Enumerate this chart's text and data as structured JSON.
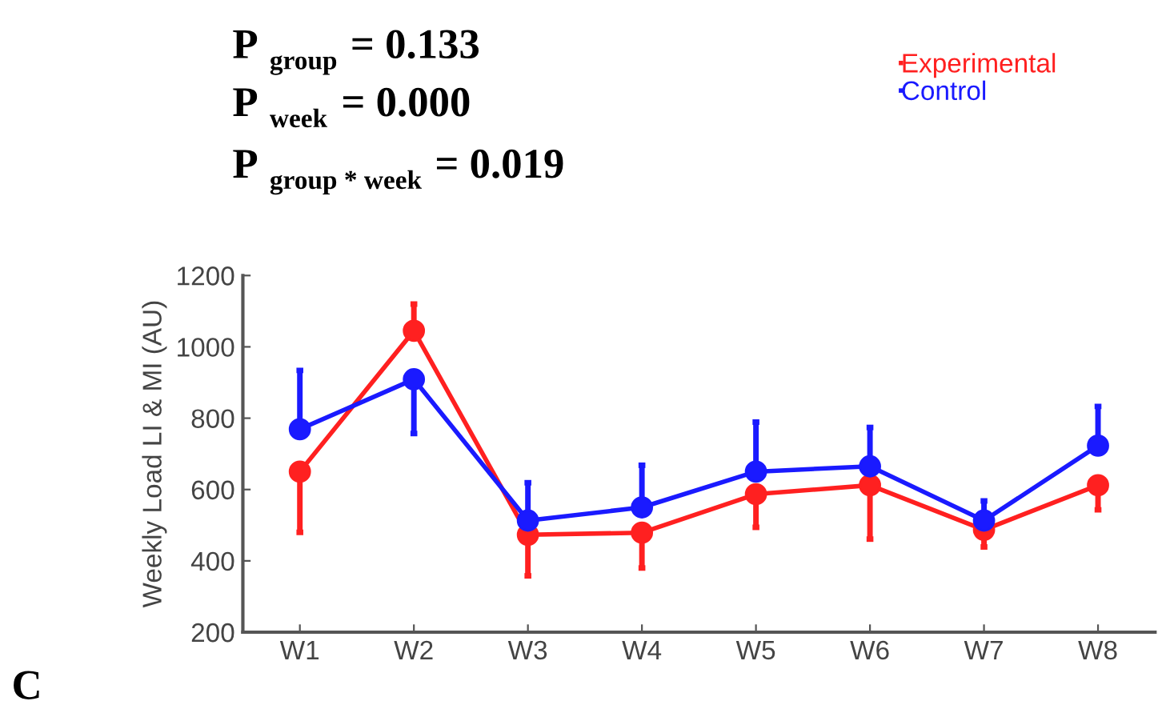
{
  "chart_data": {
    "type": "line",
    "ylabel": "Weekly Load LI & MI (AU)",
    "categories": [
      "W1",
      "W2",
      "W3",
      "W4",
      "W5",
      "W6",
      "W7",
      "W8"
    ],
    "series": [
      {
        "name": "Experimental",
        "color": "#ff2020",
        "values": [
          650,
          1045,
          473,
          479,
          587,
          612,
          487,
          612
        ],
        "errors": [
          [
            480,
            650
          ],
          [
            1045,
            1120
          ],
          [
            358,
            473
          ],
          [
            380,
            479
          ],
          [
            494,
            587
          ],
          [
            461,
            612
          ],
          [
            439,
            487
          ],
          [
            543,
            612
          ]
        ]
      },
      {
        "name": "Control",
        "color": "#1a1aff",
        "values": [
          769,
          909,
          513,
          550,
          650,
          665,
          513,
          723
        ],
        "errors": [
          [
            769,
            934
          ],
          [
            757,
            909
          ],
          [
            513,
            619
          ],
          [
            550,
            668
          ],
          [
            650,
            789
          ],
          [
            665,
            774
          ],
          [
            513,
            568
          ],
          [
            723,
            833
          ]
        ]
      }
    ],
    "ylim": [
      200,
      1200
    ],
    "yticks": [
      200,
      400,
      600,
      800,
      1000,
      1200
    ],
    "marker": "circle",
    "line_style": "solid",
    "grid": false,
    "legend": "top right",
    "annotations": [
      "P $_{group}$ = 0.133",
      "P $_{week}$ = 0.000",
      "P $_{group * week}$ = 0.019",
      "C"
    ]
  }
}
